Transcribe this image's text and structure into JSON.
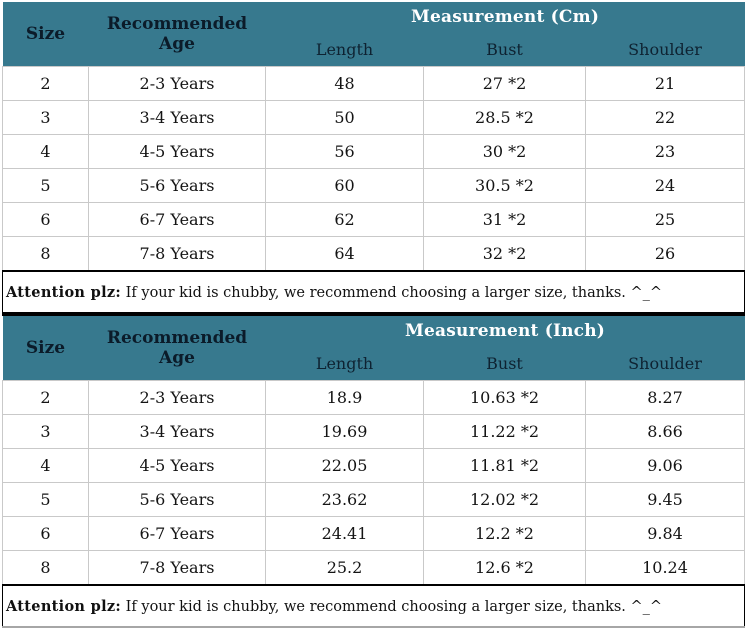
{
  "colors": {
    "header_bg": "#37798E",
    "header_text_dark": "#0b1b29",
    "header_text_light": "#ffffff",
    "body_text": "#141414",
    "grid_border": "#c9c9c9",
    "note_border": "#000000"
  },
  "tables": [
    {
      "header": {
        "size": "Size",
        "age": "Recommended Age",
        "group": "Measurement (Cm)",
        "sub": [
          "Length",
          "Bust",
          "Shoulder"
        ]
      },
      "rows": [
        [
          "2",
          "2-3 Years",
          "48",
          "27 *2",
          "21"
        ],
        [
          "3",
          "3-4 Years",
          "50",
          "28.5 *2",
          "22"
        ],
        [
          "4",
          "4-5 Years",
          "56",
          "30 *2",
          "23"
        ],
        [
          "5",
          "5-6 Years",
          "60",
          "30.5 *2",
          "24"
        ],
        [
          "6",
          "6-7 Years",
          "62",
          "31 *2",
          "25"
        ],
        [
          "8",
          "7-8 Years",
          "64",
          "32 *2",
          "26"
        ]
      ],
      "note_bold": "Attention plz:",
      "note_text": " If your kid is chubby, we recommend choosing a larger size, thanks. ^_^"
    },
    {
      "header": {
        "size": "Size",
        "age": "Recommended Age",
        "group": "Measurement (Inch)",
        "sub": [
          "Length",
          "Bust",
          "Shoulder"
        ]
      },
      "rows": [
        [
          "2",
          "2-3 Years",
          "18.9",
          "10.63 *2",
          "8.27"
        ],
        [
          "3",
          "3-4 Years",
          "19.69",
          "11.22 *2",
          "8.66"
        ],
        [
          "4",
          "4-5 Years",
          "22.05",
          "11.81 *2",
          "9.06"
        ],
        [
          "5",
          "5-6 Years",
          "23.62",
          "12.02 *2",
          "9.45"
        ],
        [
          "6",
          "6-7 Years",
          "24.41",
          "12.2 *2",
          "9.84"
        ],
        [
          "8",
          "7-8 Years",
          "25.2",
          "12.6 *2",
          "10.24"
        ]
      ],
      "note_bold": "Attention plz:",
      "note_text": " If your kid is chubby, we recommend choosing a larger size, thanks. ^_^"
    }
  ]
}
